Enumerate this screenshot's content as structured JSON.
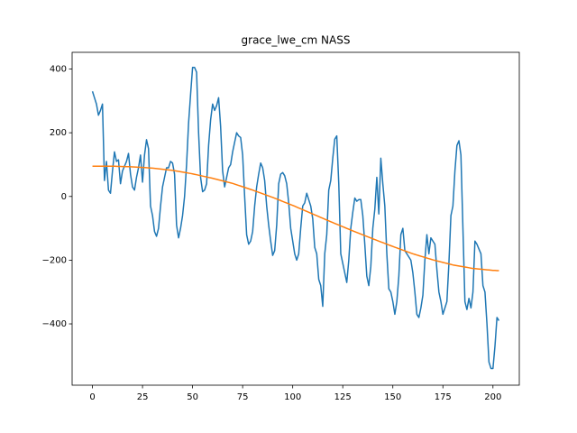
{
  "chart_data": {
    "type": "line",
    "title": "grace_lwe_cm NASS",
    "x": [
      0,
      1,
      2,
      3,
      4,
      5,
      6,
      7,
      8,
      9,
      10,
      11,
      12,
      13,
      14,
      15,
      16,
      17,
      18,
      19,
      20,
      21,
      22,
      23,
      24,
      25,
      26,
      27,
      28,
      29,
      30,
      31,
      32,
      33,
      34,
      35,
      36,
      37,
      38,
      39,
      40,
      41,
      42,
      43,
      44,
      45,
      46,
      47,
      48,
      49,
      50,
      51,
      52,
      53,
      54,
      55,
      56,
      57,
      58,
      59,
      60,
      61,
      62,
      63,
      64,
      65,
      66,
      67,
      68,
      69,
      70,
      71,
      72,
      73,
      74,
      75,
      76,
      77,
      78,
      79,
      80,
      81,
      82,
      83,
      84,
      85,
      86,
      87,
      88,
      89,
      90,
      91,
      92,
      93,
      94,
      95,
      96,
      97,
      98,
      99,
      100,
      101,
      102,
      103,
      104,
      105,
      106,
      107,
      108,
      109,
      110,
      111,
      112,
      113,
      114,
      115,
      116,
      117,
      118,
      119,
      120,
      121,
      122,
      123,
      124,
      125,
      126,
      127,
      128,
      129,
      130,
      131,
      132,
      133,
      134,
      135,
      136,
      137,
      138,
      139,
      140,
      141,
      142,
      143,
      144,
      145,
      146,
      147,
      148,
      149,
      150,
      151,
      152,
      153,
      154,
      155,
      156,
      157,
      158,
      159,
      160,
      161,
      162,
      163,
      164,
      165,
      166,
      167,
      168,
      169,
      170,
      171,
      172,
      173,
      174,
      175,
      176,
      177,
      178,
      179,
      180,
      181,
      182,
      183,
      184,
      185,
      186,
      187,
      188,
      189,
      190,
      191,
      192,
      193,
      194,
      195,
      196,
      197,
      198,
      199,
      200,
      201,
      202,
      203
    ],
    "series": [
      {
        "color": "#1f77b4",
        "values": [
          330,
          310,
          290,
          255,
          270,
          290,
          50,
          110,
          20,
          10,
          80,
          140,
          110,
          115,
          40,
          80,
          95,
          110,
          135,
          70,
          30,
          20,
          60,
          90,
          130,
          45,
          130,
          178,
          150,
          -30,
          -60,
          -110,
          -125,
          -100,
          -30,
          30,
          60,
          90,
          90,
          110,
          105,
          70,
          -90,
          -130,
          -100,
          -60,
          0,
          100,
          230,
          320,
          405,
          405,
          390,
          200,
          60,
          15,
          20,
          40,
          160,
          240,
          290,
          270,
          285,
          310,
          220,
          80,
          30,
          60,
          90,
          100,
          140,
          170,
          200,
          190,
          185,
          130,
          0,
          -120,
          -150,
          -140,
          -110,
          -30,
          30,
          70,
          105,
          90,
          50,
          -30,
          -90,
          -140,
          -185,
          -170,
          -90,
          40,
          70,
          75,
          65,
          40,
          -20,
          -100,
          -140,
          -180,
          -200,
          -180,
          -100,
          -30,
          -20,
          10,
          -10,
          -30,
          -70,
          -160,
          -180,
          -260,
          -280,
          -345,
          -180,
          -120,
          20,
          50,
          120,
          180,
          190,
          40,
          -180,
          -210,
          -240,
          -270,
          -200,
          -100,
          -50,
          -5,
          -15,
          -10,
          -10,
          -60,
          -150,
          -250,
          -280,
          -220,
          -100,
          -40,
          60,
          -55,
          120,
          40,
          -30,
          -180,
          -290,
          -300,
          -330,
          -370,
          -330,
          -250,
          -120,
          -100,
          -170,
          -180,
          -190,
          -200,
          -240,
          -300,
          -370,
          -380,
          -350,
          -310,
          -200,
          -120,
          -180,
          -130,
          -140,
          -150,
          -230,
          -300,
          -330,
          -370,
          -350,
          -330,
          -210,
          -60,
          -30,
          80,
          160,
          175,
          130,
          -100,
          -330,
          -355,
          -320,
          -350,
          -300,
          -140,
          -150,
          -165,
          -180,
          -280,
          -300,
          -400,
          -520,
          -540,
          -540,
          -470,
          -380,
          -390
        ]
      },
      {
        "color": "#ff7f0e",
        "values": [
          95,
          95,
          95,
          95,
          95,
          95,
          95,
          95,
          95,
          95,
          95,
          94.8,
          94.6,
          94.4,
          94.2,
          94,
          93.8,
          93.6,
          93.4,
          93.2,
          93,
          92.6,
          92.2,
          91.8,
          91.4,
          91,
          90.6,
          90.2,
          89.8,
          89.4,
          89,
          88.3,
          87.6,
          86.9,
          86.2,
          85.5,
          84.8,
          84.1,
          83.4,
          82.7,
          82,
          80.9,
          79.8,
          78.7,
          77.6,
          76.5,
          75.4,
          74.3,
          73.2,
          72.1,
          71,
          69.6,
          68.2,
          66.8,
          65.4,
          64,
          62.6,
          61.2,
          59.8,
          58.4,
          57,
          55.4,
          53.8,
          52.2,
          50.6,
          49,
          47.4,
          45.8,
          44.2,
          42.6,
          41,
          38.9,
          36.8,
          34.7,
          32.6,
          30.5,
          28.4,
          26.3,
          24.2,
          22.1,
          20,
          17.7,
          15.4,
          13.1,
          10.8,
          8.5,
          6.2,
          3.9,
          1.6,
          -0.7,
          -3,
          -5.5,
          -8,
          -10.5,
          -13,
          -15.5,
          -18,
          -20.5,
          -23,
          -25.5,
          -28,
          -30.7,
          -33.4,
          -36.1,
          -38.8,
          -41.5,
          -44.2,
          -46.9,
          -49.6,
          -52.3,
          -55,
          -57.7,
          -60.4,
          -63.1,
          -65.8,
          -68.5,
          -71.2,
          -73.9,
          -76.6,
          -79.3,
          -82,
          -84.6,
          -87.2,
          -89.8,
          -92.4,
          -95,
          -97.6,
          -100.2,
          -102.8,
          -105.4,
          -108,
          -110.5,
          -113,
          -115.5,
          -118,
          -120.5,
          -123,
          -125.5,
          -128,
          -130.5,
          -133,
          -135.4,
          -137.8,
          -140.2,
          -142.6,
          -145,
          -147.4,
          -149.8,
          -152.2,
          -154.6,
          -157,
          -159.3,
          -161.6,
          -163.9,
          -166.2,
          -168.5,
          -170.8,
          -173.1,
          -175.4,
          -177.7,
          -180,
          -181.9,
          -183.8,
          -185.7,
          -187.6,
          -189.5,
          -191.4,
          -193.3,
          -195.2,
          -197.1,
          -199,
          -200.6,
          -202.2,
          -203.8,
          -205.4,
          -207,
          -208.6,
          -210.2,
          -211.8,
          -213.4,
          -215,
          -216.1,
          -217.2,
          -218.3,
          -219.4,
          -220.5,
          -221.6,
          -222.7,
          -223.8,
          -224.9,
          -226,
          -226.6,
          -227.2,
          -227.8,
          -228.4,
          -229,
          -229.6,
          -230.2,
          -230.8,
          -231.4,
          -232,
          -232.3,
          -232.7,
          -233
        ]
      }
    ],
    "xlim": [
      -10.15,
      213.15
    ],
    "ylim": [
      -592.5,
      452.5
    ],
    "xticks": [
      0,
      25,
      50,
      75,
      100,
      125,
      150,
      175,
      200
    ],
    "yticks": [
      {
        "value": -400,
        "label": "−400"
      },
      {
        "value": -200,
        "label": "−200"
      },
      0,
      200,
      400
    ],
    "grid": false
  }
}
